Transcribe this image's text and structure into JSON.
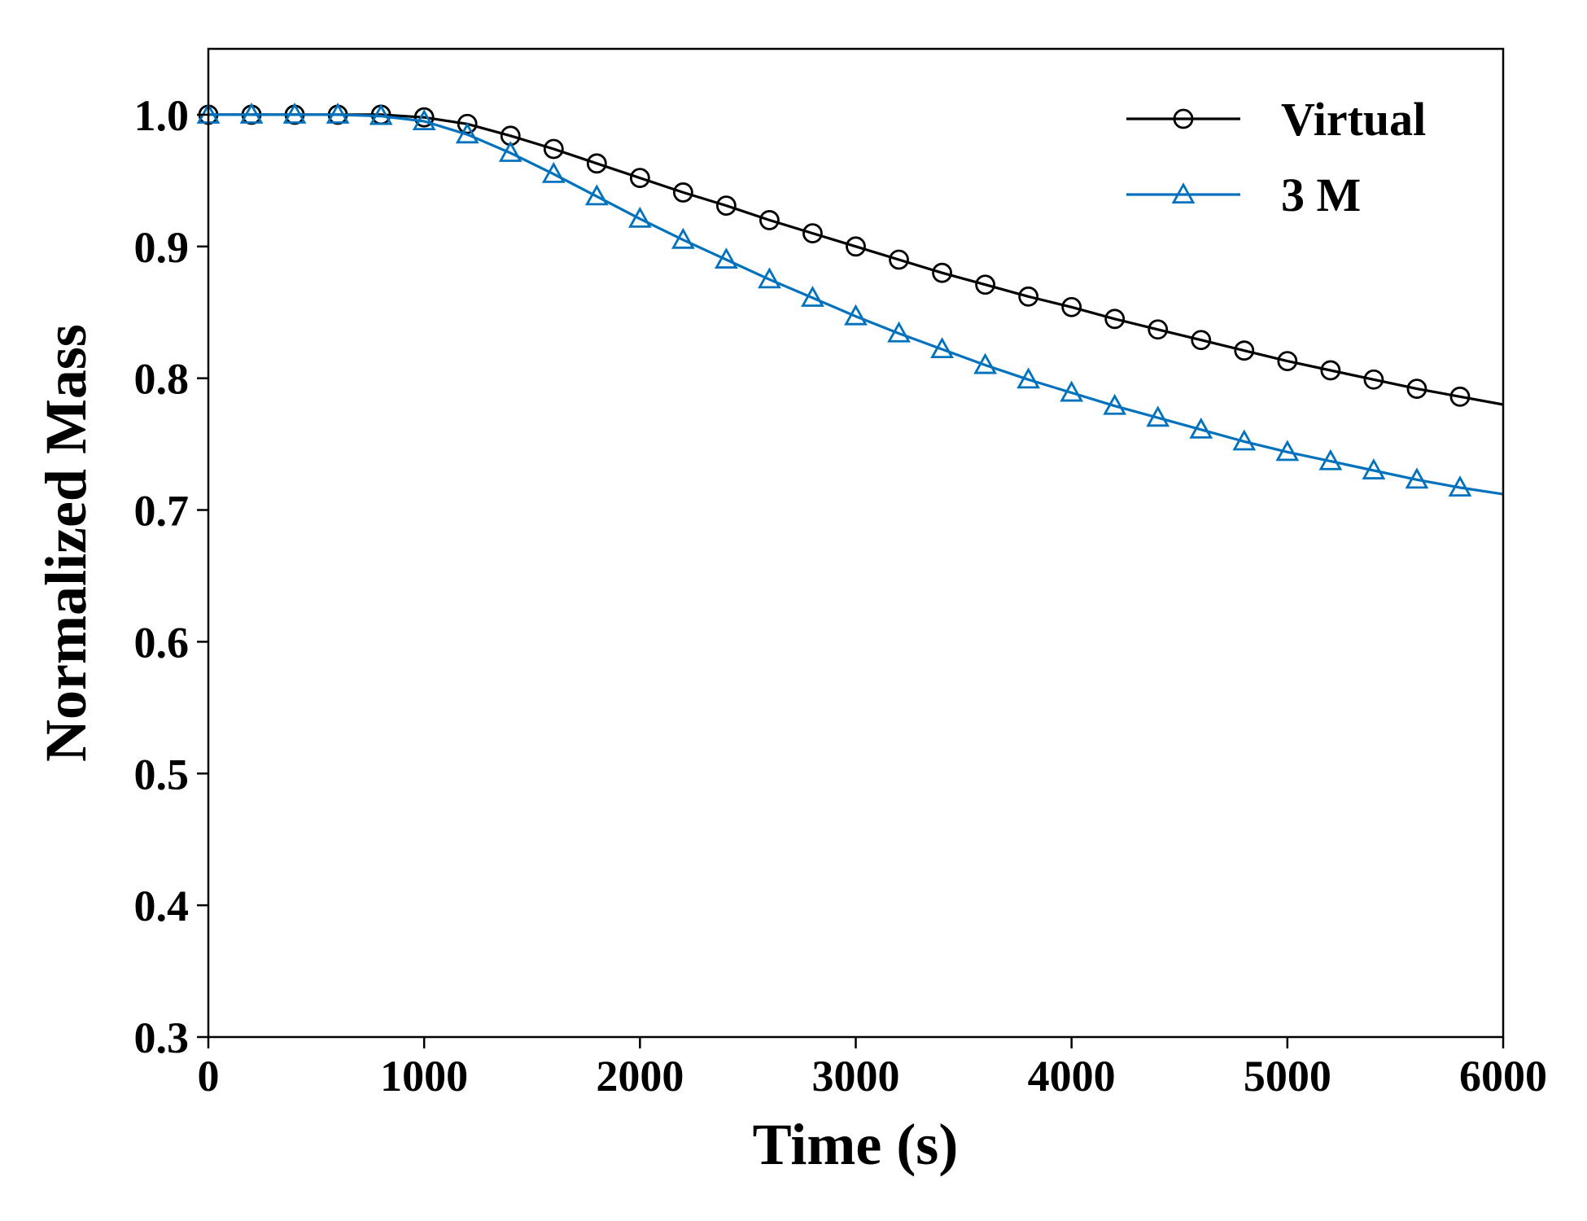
{
  "chart_data": {
    "type": "line",
    "xlabel": "Time (s)",
    "ylabel": "Normalized Mass",
    "xlim": [
      0,
      6000
    ],
    "ylim": [
      0.3,
      1.05
    ],
    "xticks": [
      "0",
      "1000",
      "2000",
      "3000",
      "4000",
      "5000",
      "6000"
    ],
    "yticks": [
      "0.3",
      "0.4",
      "0.5",
      "0.6",
      "0.7",
      "0.8",
      "0.9",
      "1.0"
    ],
    "grid": false,
    "legend_position": "top-right",
    "series": [
      {
        "name": "Virtual",
        "color": "#000000",
        "marker": "circle",
        "x": [
          0,
          200,
          400,
          600,
          800,
          1000,
          1200,
          1400,
          1600,
          1800,
          2000,
          2200,
          2400,
          2600,
          2800,
          3000,
          3200,
          3400,
          3600,
          3800,
          4000,
          4200,
          4400,
          4600,
          4800,
          5000,
          5200,
          5400,
          5600,
          5800,
          6000
        ],
        "y": [
          1.0,
          1.0,
          1.0,
          1.0,
          1.0,
          0.998,
          0.993,
          0.984,
          0.974,
          0.963,
          0.952,
          0.941,
          0.931,
          0.92,
          0.91,
          0.9,
          0.89,
          0.88,
          0.871,
          0.862,
          0.854,
          0.845,
          0.837,
          0.829,
          0.821,
          0.813,
          0.806,
          0.799,
          0.792,
          0.786,
          0.78
        ],
        "marker_indices": [
          0,
          1,
          2,
          3,
          4,
          5,
          6,
          7,
          8,
          9,
          10,
          11,
          12,
          13,
          14,
          15,
          16,
          17,
          18,
          19,
          20,
          21,
          22,
          23,
          24,
          25,
          26,
          27,
          28,
          29
        ]
      },
      {
        "name": "3 M",
        "color": "#0072BD",
        "marker": "triangle",
        "x": [
          0,
          200,
          400,
          600,
          800,
          1000,
          1200,
          1400,
          1600,
          1800,
          2000,
          2200,
          2400,
          2600,
          2800,
          3000,
          3200,
          3400,
          3600,
          3800,
          4000,
          4200,
          4400,
          4600,
          4800,
          5000,
          5200,
          5400,
          5600,
          5800,
          6000
        ],
        "y": [
          1.0,
          1.0,
          1.0,
          1.0,
          0.999,
          0.995,
          0.985,
          0.971,
          0.955,
          0.938,
          0.921,
          0.905,
          0.89,
          0.875,
          0.861,
          0.847,
          0.834,
          0.822,
          0.81,
          0.799,
          0.789,
          0.779,
          0.77,
          0.761,
          0.752,
          0.744,
          0.737,
          0.73,
          0.723,
          0.717,
          0.712
        ],
        "marker_indices": [
          0,
          1,
          2,
          3,
          4,
          5,
          6,
          7,
          8,
          9,
          10,
          11,
          12,
          13,
          14,
          15,
          16,
          17,
          18,
          19,
          20,
          21,
          22,
          23,
          24,
          25,
          26,
          27,
          28,
          29
        ]
      }
    ]
  }
}
